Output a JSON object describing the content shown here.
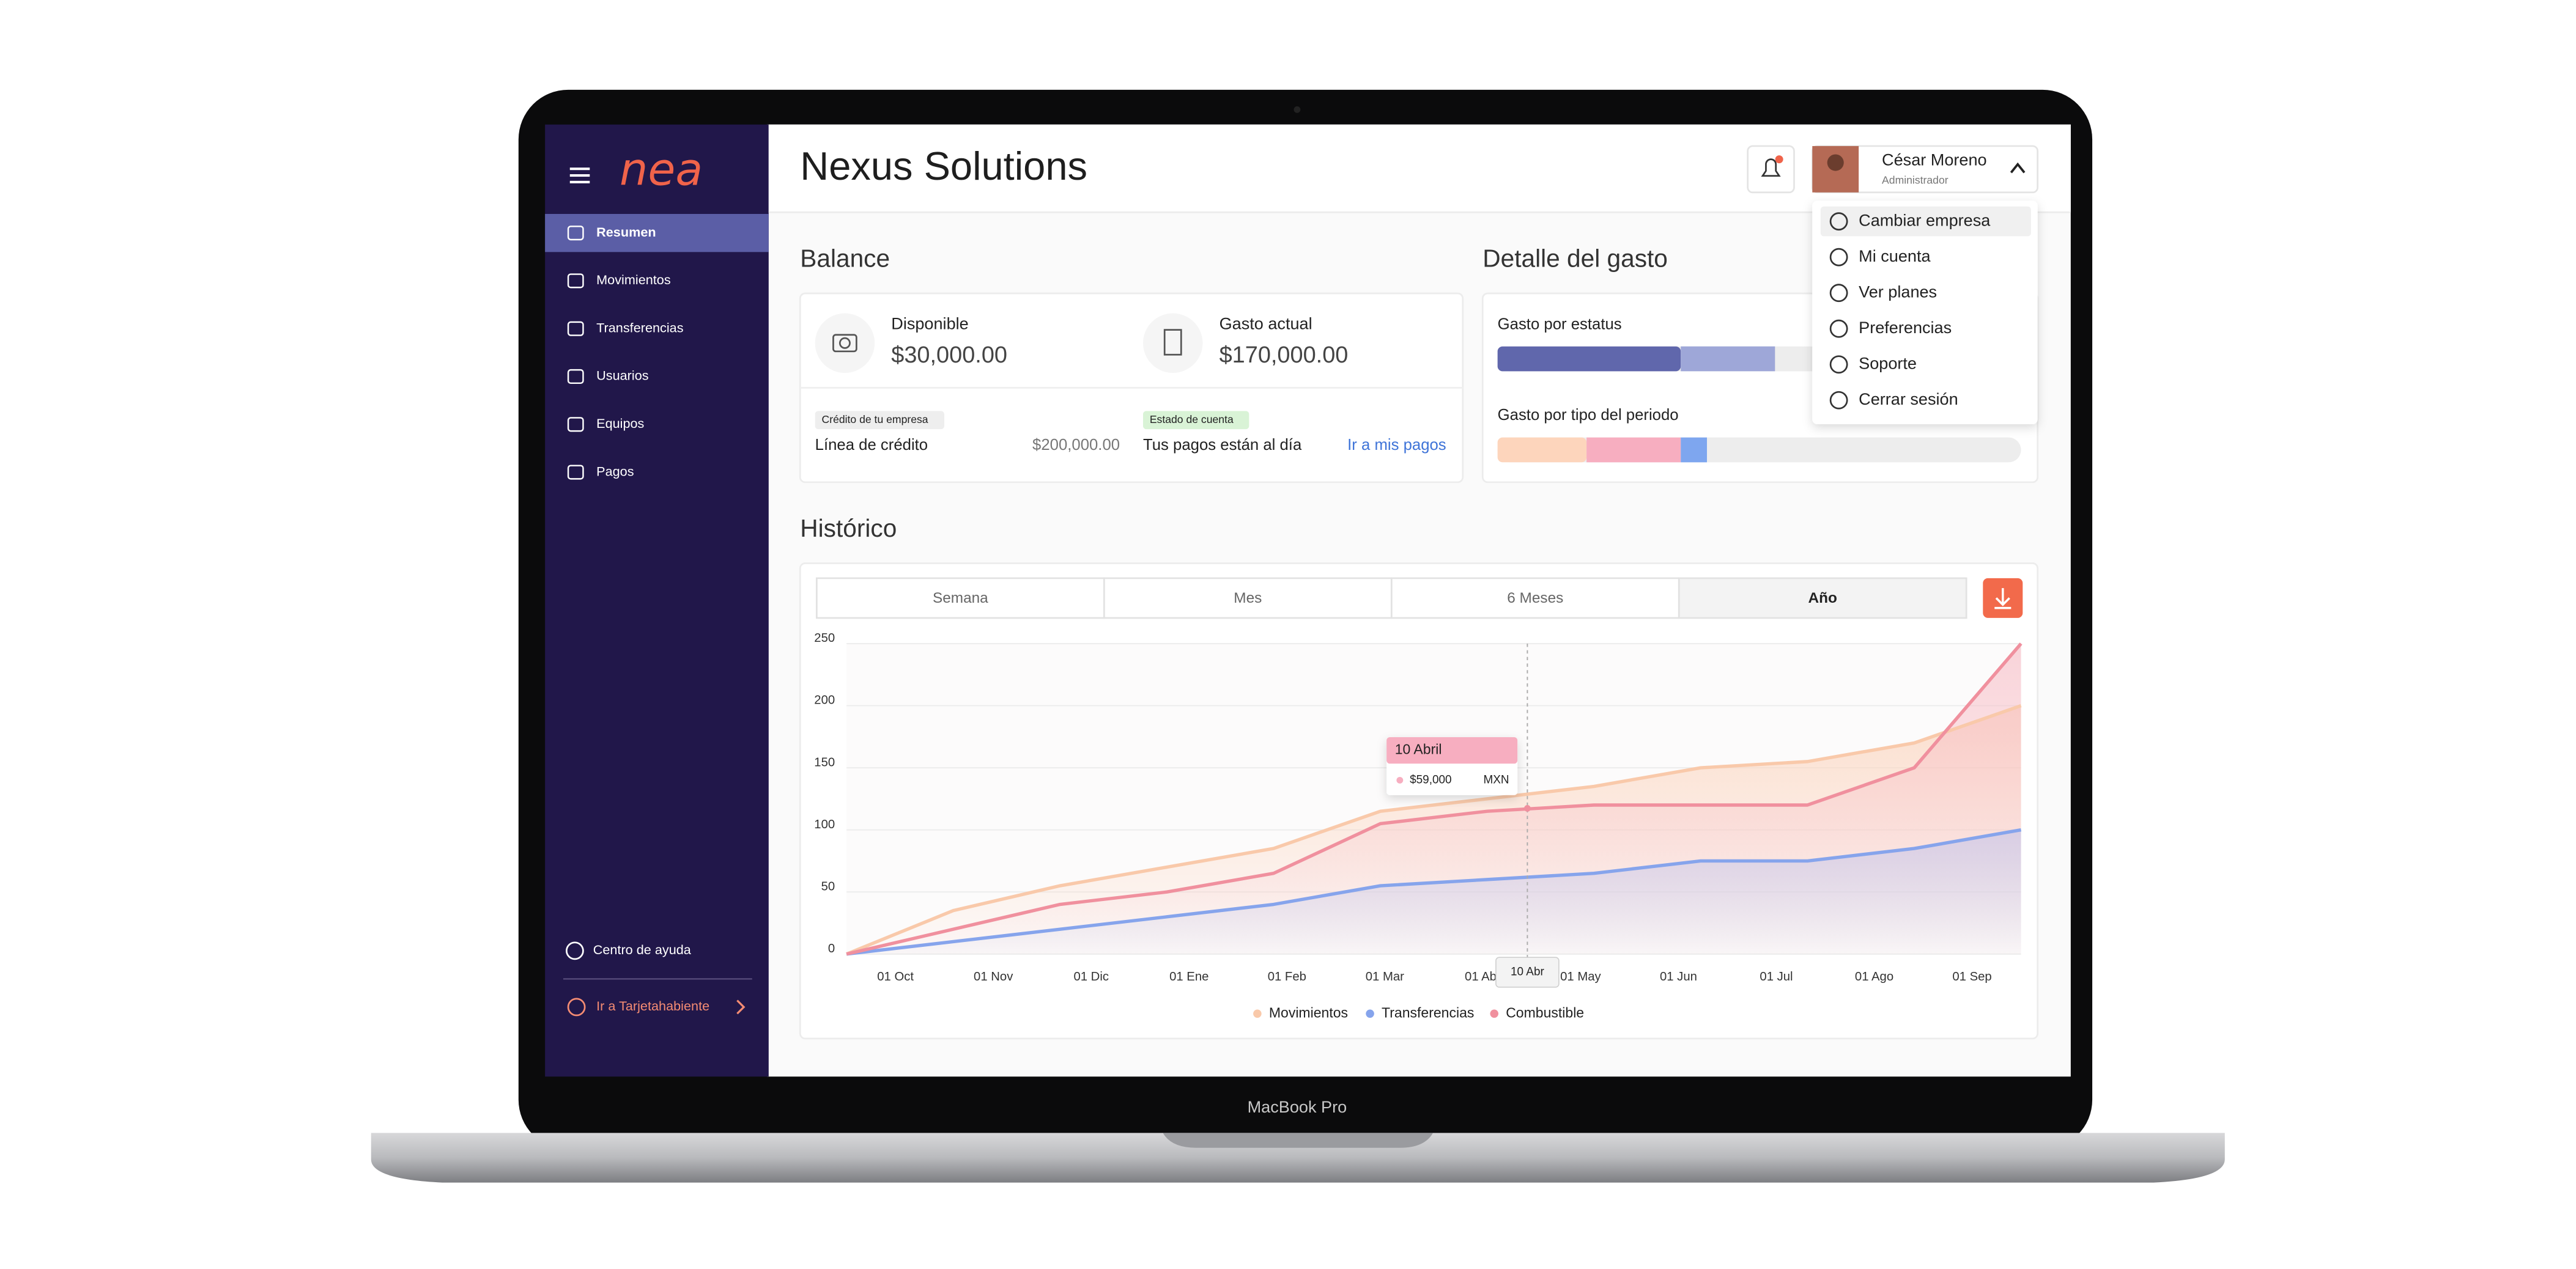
{
  "device_label": "MacBook Pro",
  "sidebar": {
    "logo": "nea",
    "selected": 0,
    "menu": [
      "Resumen",
      "Movimientos",
      "Transferencias",
      "Usuarios",
      "Equipos",
      "Pagos"
    ],
    "help": "Centro de ayuda",
    "cardholder": "Ir a Tarjetahabiente"
  },
  "header": {
    "title": "Nexus Solutions",
    "user": {
      "name": "César Moreno",
      "role": "Administrador"
    }
  },
  "user_menu": {
    "highlighted": 0,
    "items": [
      "Cambiar empresa",
      "Mi cuenta",
      "Ver planes",
      "Preferencias",
      "Soporte",
      "Cerrar sesión"
    ]
  },
  "balance": {
    "title": "Balance",
    "available": {
      "label": "Disponible",
      "amount": "$30,000.00"
    },
    "spent": {
      "label": "Gasto actual",
      "amount": "$170,000.00"
    },
    "credit": {
      "badge": "Crédito de tu empresa",
      "label": "Línea de crédito",
      "amount": "$200,000.00"
    },
    "statement": {
      "badge": "Estado de cuenta",
      "label": "Tus pagos están al día",
      "link": "Ir a mis pagos"
    }
  },
  "spending": {
    "title": "Detalle del gasto",
    "xlim": [
      0,
      100
    ],
    "status": {
      "label": "Gasto por estatus",
      "segments": [
        {
          "color": "#6067ac",
          "value": 35
        },
        {
          "color": "#9ea7d8",
          "value": 18
        }
      ]
    },
    "by_type": {
      "label": "Gasto por tipo del periodo",
      "segments": [
        {
          "color": "#fdd5bc",
          "value": 17
        },
        {
          "color": "#f7aec0",
          "value": 18
        },
        {
          "color": "#7ea6ef",
          "value": 5
        }
      ]
    }
  },
  "history": {
    "title": "Histórico",
    "tabs": [
      "Semana",
      "Mes",
      "6 Meses",
      "Año"
    ],
    "selected_tab": 3,
    "chart_data": {
      "type": "line",
      "categories": [
        "01 Oct",
        "01 Nov",
        "01 Dic",
        "01 Ene",
        "01 Feb",
        "01 Mar",
        "01 Abr",
        "01 May",
        "01 Jun",
        "01 Jul",
        "01 Ago",
        "01 Sep"
      ],
      "series": [
        {
          "name": "Movimientos",
          "color": "#f9c9aa",
          "values": [
            0,
            35,
            55,
            70,
            85,
            115,
            125,
            135,
            150,
            155,
            170,
            200
          ]
        },
        {
          "name": "Transferencias",
          "color": "#86a4ec",
          "values": [
            0,
            10,
            20,
            30,
            40,
            55,
            60,
            65,
            75,
            75,
            85,
            100
          ]
        },
        {
          "name": "Combustible",
          "color": "#f0909e",
          "values": [
            0,
            20,
            40,
            50,
            65,
            105,
            115,
            120,
            120,
            120,
            150,
            250
          ]
        }
      ],
      "ylim": [
        0,
        250
      ],
      "yticks": [
        0,
        50,
        100,
        150,
        200,
        250
      ],
      "grid": true,
      "tooltip": {
        "title": "10 Abril",
        "amount": "$59,000",
        "currency": "MXN",
        "x_label": "10 Abr"
      }
    }
  }
}
